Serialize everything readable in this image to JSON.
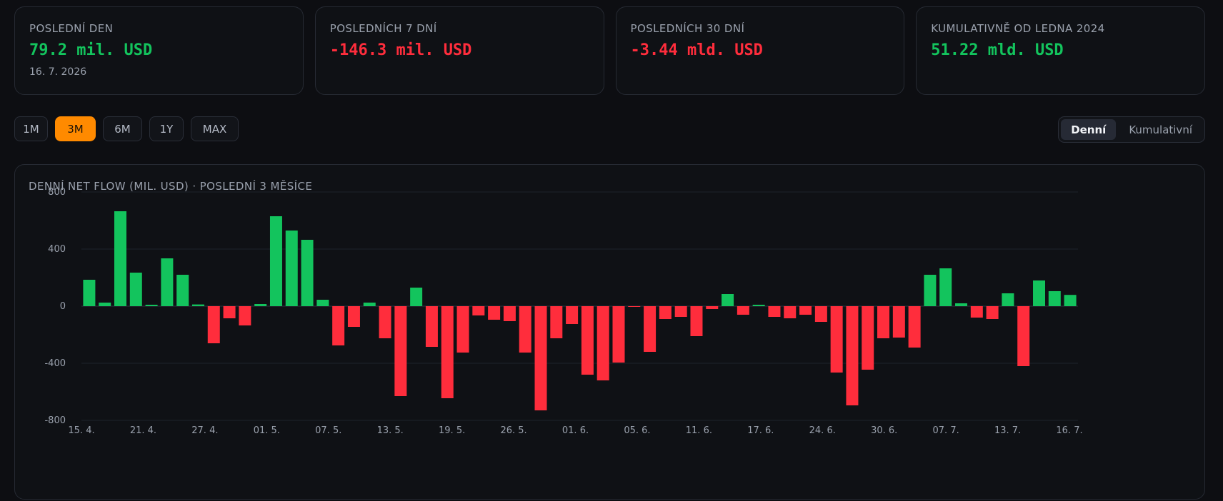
{
  "stats": [
    {
      "label": "POSLEDNÍ DEN",
      "value": "79.2 mil. USD",
      "sub": "16. 7. 2026",
      "tone": "pos"
    },
    {
      "label": "POSLEDNÍCH 7 DNÍ",
      "value": "-146.3 mil. USD",
      "sub": "",
      "tone": "neg"
    },
    {
      "label": "POSLEDNÍCH 30 DNÍ",
      "value": "-3.44 mld. USD",
      "sub": "",
      "tone": "neg"
    },
    {
      "label": "KUMULATIVNĚ OD LEDNA 2024",
      "value": "51.22 mld. USD",
      "sub": "",
      "tone": "pos"
    }
  ],
  "ranges": [
    "1M",
    "3M",
    "6M",
    "1Y",
    "MAX"
  ],
  "active_range": "3M",
  "modes": [
    "Denní",
    "Kumulativní"
  ],
  "active_mode": "Denní",
  "colors": {
    "positive": "#13c45d",
    "negative": "#ff2d3c",
    "accent": "#ff8a00"
  },
  "chart_data": {
    "type": "bar",
    "title": "DENNÍ NET FLOW (MIL. USD) · POSLEDNÍ 3 MĚSÍCE",
    "ylim": [
      -800,
      800
    ],
    "yticks": [
      800,
      400,
      0,
      -400,
      -800
    ],
    "xtick_labels": [
      "15. 4.",
      "21. 4.",
      "27. 4.",
      "01. 5.",
      "07. 5.",
      "13. 5.",
      "19. 5.",
      "26. 5.",
      "01. 6.",
      "05. 6.",
      "11. 6.",
      "17. 6.",
      "24. 6.",
      "30. 6.",
      "07. 7.",
      "13. 7.",
      "16. 7."
    ],
    "values": [
      185,
      25,
      665,
      235,
      10,
      335,
      220,
      12,
      -260,
      -85,
      -135,
      15,
      630,
      530,
      465,
      45,
      -275,
      -145,
      25,
      -225,
      -630,
      130,
      -285,
      -645,
      -325,
      -65,
      -95,
      -105,
      -325,
      -730,
      -225,
      -125,
      -480,
      -520,
      -395,
      -3,
      -320,
      -90,
      -75,
      -210,
      -20,
      85,
      -60,
      10,
      -75,
      -85,
      -60,
      -110,
      -465,
      -695,
      -445,
      -225,
      -220,
      -290,
      220,
      265,
      20,
      -80,
      -90,
      90,
      -420,
      180,
      105,
      79
    ]
  }
}
